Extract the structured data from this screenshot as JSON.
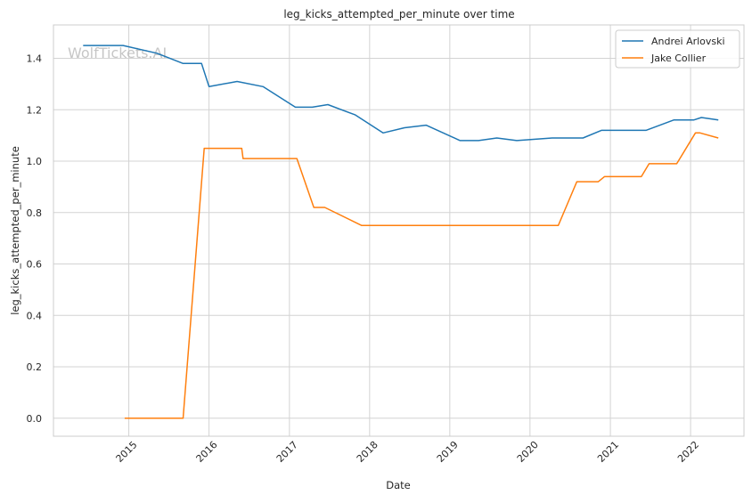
{
  "chart_data": {
    "type": "line",
    "title": "leg_kicks_attempted_per_minute over time",
    "xlabel": "Date",
    "ylabel": "leg_kicks_attempted_per_minute",
    "watermark": "WolfTickets.AI",
    "x_ticks": [
      "2015",
      "2016",
      "2017",
      "2018",
      "2019",
      "2020",
      "2021",
      "2022"
    ],
    "y_ticks": [
      "0.0",
      "0.2",
      "0.4",
      "0.6",
      "0.8",
      "1.0",
      "1.2",
      "1.4"
    ],
    "xlim": [
      "2014-01-23",
      "2022-09-01"
    ],
    "ylim": [
      -0.07,
      1.53
    ],
    "grid": true,
    "legend_position": "top-right",
    "series": [
      {
        "name": "Andrei Arlovski",
        "color": "#1f77b4",
        "points": [
          [
            "2014-06-07",
            1.45
          ],
          [
            "2014-12-06",
            1.45
          ],
          [
            "2015-05-09",
            1.42
          ],
          [
            "2015-09-05",
            1.38
          ],
          [
            "2015-11-28",
            1.38
          ],
          [
            "2016-01-01",
            1.29
          ],
          [
            "2016-05-08",
            1.31
          ],
          [
            "2016-09-03",
            1.29
          ],
          [
            "2017-01-28",
            1.21
          ],
          [
            "2017-04-15",
            1.21
          ],
          [
            "2017-06-25",
            1.22
          ],
          [
            "2017-10-28",
            1.18
          ],
          [
            "2018-03-03",
            1.11
          ],
          [
            "2018-06-09",
            1.13
          ],
          [
            "2018-09-15",
            1.14
          ],
          [
            "2019-02-17",
            1.08
          ],
          [
            "2019-05-12",
            1.08
          ],
          [
            "2019-08-03",
            1.09
          ],
          [
            "2019-11-02",
            1.08
          ],
          [
            "2020-04-11",
            1.09
          ],
          [
            "2020-06-20",
            1.09
          ],
          [
            "2020-08-29",
            1.09
          ],
          [
            "2020-11-21",
            1.12
          ],
          [
            "2021-02-20",
            1.12
          ],
          [
            "2021-04-24",
            1.12
          ],
          [
            "2021-06-12",
            1.12
          ],
          [
            "2021-10-16",
            1.16
          ],
          [
            "2022-01-15",
            1.16
          ],
          [
            "2022-02-19",
            1.17
          ],
          [
            "2022-05-07",
            1.16
          ]
        ]
      },
      {
        "name": "Jake Collier",
        "color": "#ff7f0e",
        "points": [
          [
            "2014-12-13",
            0.0
          ],
          [
            "2015-09-05",
            0.0
          ],
          [
            "2015-12-10",
            1.05
          ],
          [
            "2016-05-29",
            1.05
          ],
          [
            "2016-06-04",
            1.01
          ],
          [
            "2017-02-04",
            1.01
          ],
          [
            "2017-04-22",
            0.82
          ],
          [
            "2017-06-11",
            0.82
          ],
          [
            "2017-11-25",
            0.75
          ],
          [
            "2020-05-09",
            0.75
          ],
          [
            "2020-08-01",
            0.92
          ],
          [
            "2020-11-07",
            0.92
          ],
          [
            "2020-12-05",
            0.94
          ],
          [
            "2021-05-22",
            0.94
          ],
          [
            "2021-06-26",
            0.99
          ],
          [
            "2021-10-30",
            0.99
          ],
          [
            "2022-01-23",
            1.11
          ],
          [
            "2022-02-13",
            1.11
          ],
          [
            "2022-05-07",
            1.09
          ]
        ]
      }
    ]
  }
}
